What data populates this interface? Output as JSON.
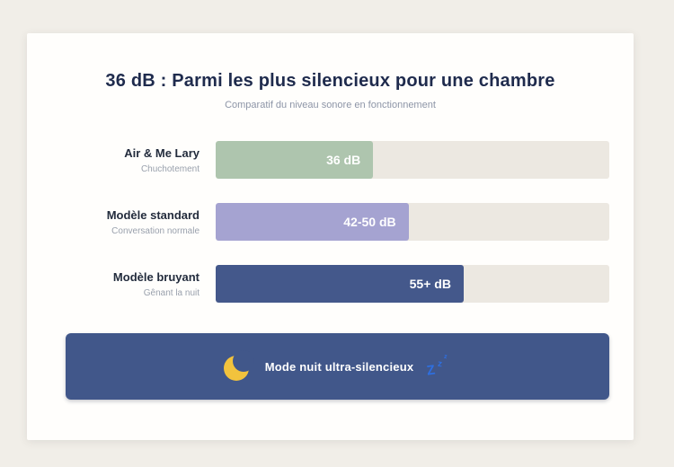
{
  "page": {
    "background_color": "#f1eee8",
    "card_background_color": "#fffefc"
  },
  "chart_data": {
    "type": "bar",
    "orientation": "horizontal",
    "title": "36 dB : Parmi les plus silencieux pour une chambre",
    "subtitle": "Comparatif du niveau sonore en fonctionnement",
    "unit": "dB",
    "x_axis_visible": false,
    "implied_axis_max_db": 90,
    "track_color": "#ece8e1",
    "legend_position": "none",
    "categories": [
      "Air & Me Lary",
      "Modèle standard",
      "Modèle bruyant"
    ],
    "rows": [
      {
        "label": "Air & Me Lary",
        "sublabel": "Chuchotement",
        "value_label": "36 dB",
        "value_db_min": 36,
        "value_db_max": 36,
        "fill_percent": 40,
        "color": "#aec5ae"
      },
      {
        "label": "Modèle standard",
        "sublabel": "Conversation normale",
        "value_label": "42-50 dB",
        "value_db_min": 42,
        "value_db_max": 50,
        "fill_percent": 49,
        "color": "#a5a3d1"
      },
      {
        "label": "Modèle bruyant",
        "sublabel": "Gênant la nuit",
        "value_label": "55+ dB",
        "value_db_min": 55,
        "value_db_max": null,
        "fill_percent": 63,
        "color": "#44588b"
      }
    ]
  },
  "banner": {
    "label": "Mode nuit ultra-silencieux",
    "background_color": "#41578a",
    "text_color": "#ffffff",
    "moon_icon_color": "#f2c33d",
    "zzz_icon_color": "#2e6fe0"
  }
}
